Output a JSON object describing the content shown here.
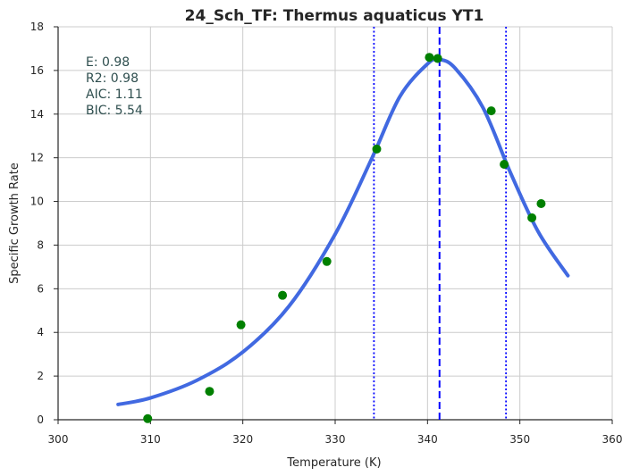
{
  "chart_data": {
    "type": "scatter",
    "title": "24_Sch_TF: Thermus aquaticus YT1",
    "xlabel": "Temperature (K)",
    "ylabel": "Specific Growth Rate",
    "xlim": [
      300,
      360
    ],
    "ylim": [
      0,
      18
    ],
    "xticks": [
      "300",
      "310",
      "320",
      "330",
      "340",
      "350",
      "360"
    ],
    "yticks": [
      "0",
      "2",
      "4",
      "6",
      "8",
      "10",
      "12",
      "14",
      "16",
      "18"
    ],
    "grid": true,
    "stats": [
      "E:  0.98",
      "R2:  0.98",
      "AIC: 1.11",
      "BIC: 5.54"
    ],
    "observations": {
      "color": "#008000",
      "x": [
        309.7,
        316.4,
        319.8,
        324.3,
        329.1,
        334.5,
        340.2,
        341.1,
        346.9,
        348.3,
        351.3,
        352.3
      ],
      "y": [
        0.05,
        1.3,
        4.35,
        5.7,
        7.25,
        12.4,
        16.6,
        16.55,
        14.15,
        11.7,
        9.25,
        9.9
      ]
    },
    "fit_curve": {
      "color": "#4169e1",
      "x": [
        306.5,
        310,
        315,
        320,
        325,
        330,
        334,
        337,
        340,
        341.3,
        343,
        346,
        349,
        352,
        355.2
      ],
      "y": [
        0.7,
        1.0,
        1.8,
        3.1,
        5.2,
        8.5,
        12.0,
        14.8,
        16.3,
        16.5,
        16.1,
        14.3,
        11.3,
        8.6,
        6.6
      ]
    },
    "vlines": [
      {
        "x": 341.3,
        "style": "dashed",
        "color": "#0000ff"
      },
      {
        "x": 334.2,
        "style": "dotted",
        "color": "#0000ff"
      },
      {
        "x": 348.5,
        "style": "dotted",
        "color": "#0000ff"
      }
    ]
  }
}
